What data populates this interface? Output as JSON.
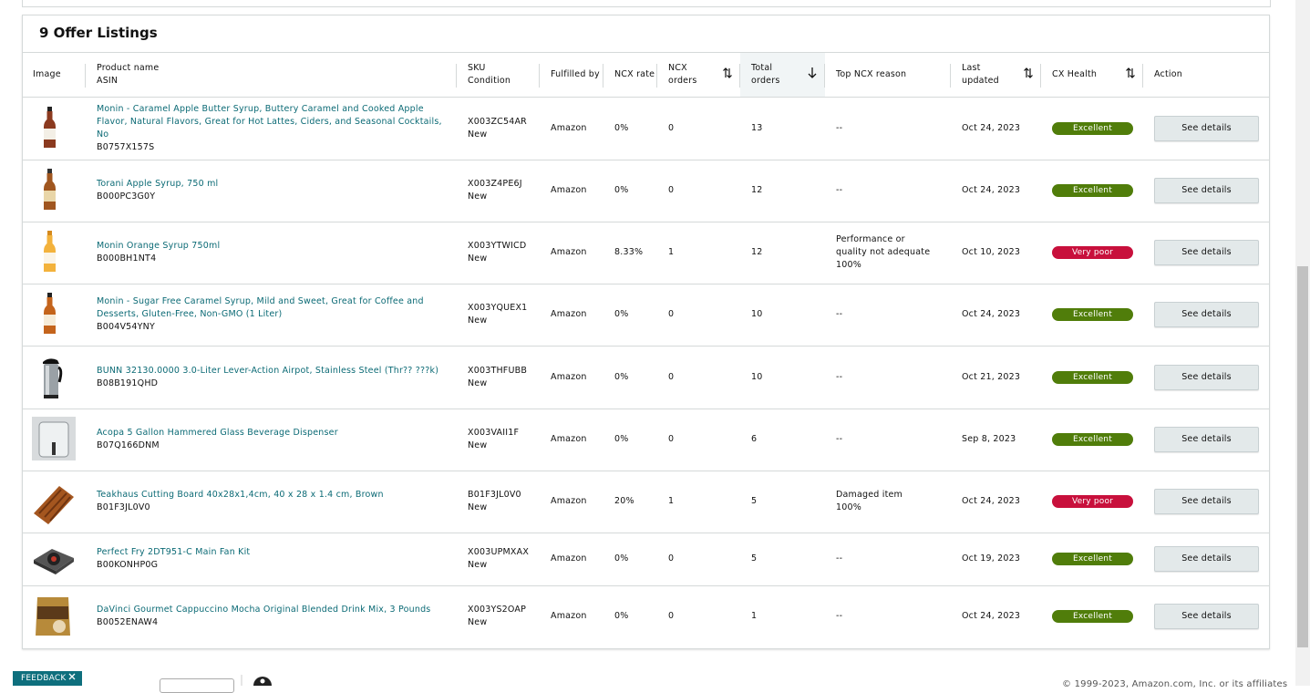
{
  "title": "9 Offer Listings",
  "headers": [
    [
      "Image"
    ],
    [
      "Product name",
      "ASIN"
    ],
    [
      "SKU",
      "Condition"
    ],
    [
      "Fulfilled by"
    ],
    [
      "NCX rate"
    ],
    [
      "NCX orders"
    ],
    [
      "Total orders"
    ],
    [
      "Top NCX reason"
    ],
    [
      "Last updated"
    ],
    [
      "CX Health"
    ],
    [
      "Action"
    ]
  ],
  "rows": [
    {
      "name": "Monin - Caramel Apple Butter Syrup, Buttery Caramel and Cooked Apple Flavor, Natural Flavors, Great for Hot Lattes, Ciders, and Seasonal Cocktails, No",
      "asin": "B0757X157S",
      "sku": "X003ZC54AR",
      "condition": "New",
      "fulfilled": "Amazon",
      "rate": "0%",
      "orders": "0",
      "total": "13",
      "reason": [
        "--"
      ],
      "updated": "Oct 24, 2023",
      "health": "Excellent",
      "action": "See details"
    },
    {
      "name": "Torani Apple Syrup, 750 ml",
      "asin": "B000PC3G0Y",
      "sku": "X003Z4PE6J",
      "condition": "New",
      "fulfilled": "Amazon",
      "rate": "0%",
      "orders": "0",
      "total": "12",
      "reason": [
        "--"
      ],
      "updated": "Oct 24, 2023",
      "health": "Excellent",
      "action": "See details"
    },
    {
      "name": "Monin Orange Syrup 750ml",
      "asin": "B000BH1NT4",
      "sku": "X003YTWICD",
      "condition": "New",
      "fulfilled": "Amazon",
      "rate": "8.33%",
      "orders": "1",
      "total": "12",
      "reason": [
        "Performance or quality not adequate",
        "100%"
      ],
      "updated": "Oct 10, 2023",
      "health": "Very poor",
      "action": "See details"
    },
    {
      "name": "Monin - Sugar Free Caramel Syrup, Mild and Sweet, Great for Coffee and Desserts, Gluten-Free, Non-GMO (1 Liter)",
      "asin": "B004V54YNY",
      "sku": "X003YQUEX1",
      "condition": "New",
      "fulfilled": "Amazon",
      "rate": "0%",
      "orders": "0",
      "total": "10",
      "reason": [
        "--"
      ],
      "updated": "Oct 24, 2023",
      "health": "Excellent",
      "action": "See details"
    },
    {
      "name": "BUNN 32130.0000 3.0-Liter Lever-Action Airpot, Stainless Steel (Thr?? ???k)",
      "asin": "B08B191QHD",
      "sku": "X003THFUBB",
      "condition": "New",
      "fulfilled": "Amazon",
      "rate": "0%",
      "orders": "0",
      "total": "10",
      "reason": [
        "--"
      ],
      "updated": "Oct 21, 2023",
      "health": "Excellent",
      "action": "See details"
    },
    {
      "name": "Acopa 5 Gallon Hammered Glass Beverage Dispenser",
      "asin": "B07Q166DNM",
      "sku": "X003VAII1F",
      "condition": "New",
      "fulfilled": "Amazon",
      "rate": "0%",
      "orders": "0",
      "total": "6",
      "reason": [
        "--"
      ],
      "updated": "Sep 8, 2023",
      "health": "Excellent",
      "action": "See details"
    },
    {
      "name": "Teakhaus Cutting Board 40x28x1,4cm, 40 x 28 x 1.4 cm, Brown",
      "asin": "B01F3JL0V0",
      "sku": "B01F3JL0V0",
      "condition": "New",
      "fulfilled": "Amazon",
      "rate": "20%",
      "orders": "1",
      "total": "5",
      "reason": [
        "Damaged item",
        "100%"
      ],
      "updated": "Oct 24, 2023",
      "health": "Very poor",
      "action": "See details"
    },
    {
      "name": "Perfect Fry 2DT951-C Main Fan Kit",
      "asin": "B00KONHP0G",
      "sku": "X003UPMXAX",
      "condition": "New",
      "fulfilled": "Amazon",
      "rate": "0%",
      "orders": "0",
      "total": "5",
      "reason": [
        "--"
      ],
      "updated": "Oct 19, 2023",
      "health": "Excellent",
      "action": "See details"
    },
    {
      "name": "DaVinci Gourmet Cappuccino Mocha Original Blended Drink Mix, 3 Pounds",
      "asin": "B0052ENAW4",
      "sku": "X003YS2OAP",
      "condition": "New",
      "fulfilled": "Amazon",
      "rate": "0%",
      "orders": "0",
      "total": "1",
      "reason": [
        "--"
      ],
      "updated": "Oct 24, 2023",
      "health": "Excellent",
      "action": "See details"
    }
  ],
  "feedback": "FEEDBACK",
  "footer": "© 1999-2023, Amazon.com, Inc. or its affiliates"
}
